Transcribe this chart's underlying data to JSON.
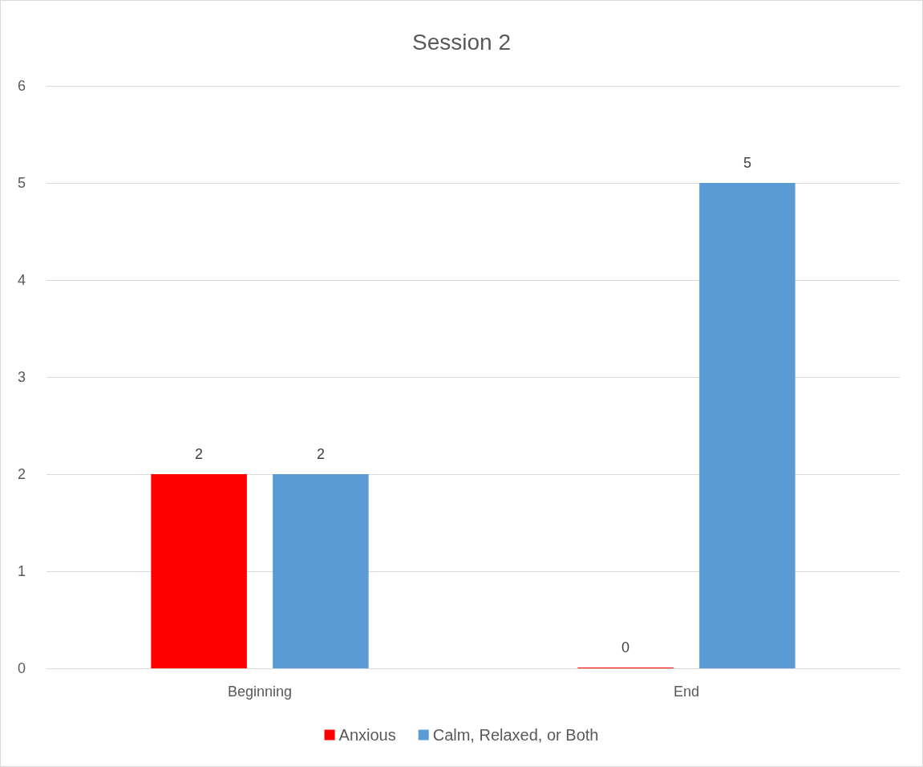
{
  "chart_data": {
    "type": "bar",
    "title": "Session 2",
    "categories": [
      "Beginning",
      "End"
    ],
    "series": [
      {
        "name": "Anxious",
        "color": "#ff0000",
        "values": [
          2,
          0
        ]
      },
      {
        "name": "Calm, Relaxed, or Both",
        "color": "#5b9bd5",
        "values": [
          2,
          5
        ]
      }
    ],
    "ylim": [
      0,
      6
    ],
    "yticks": [
      0,
      1,
      2,
      3,
      4,
      5,
      6
    ],
    "grid": "y",
    "legend": "bottom",
    "data_labels": true
  }
}
